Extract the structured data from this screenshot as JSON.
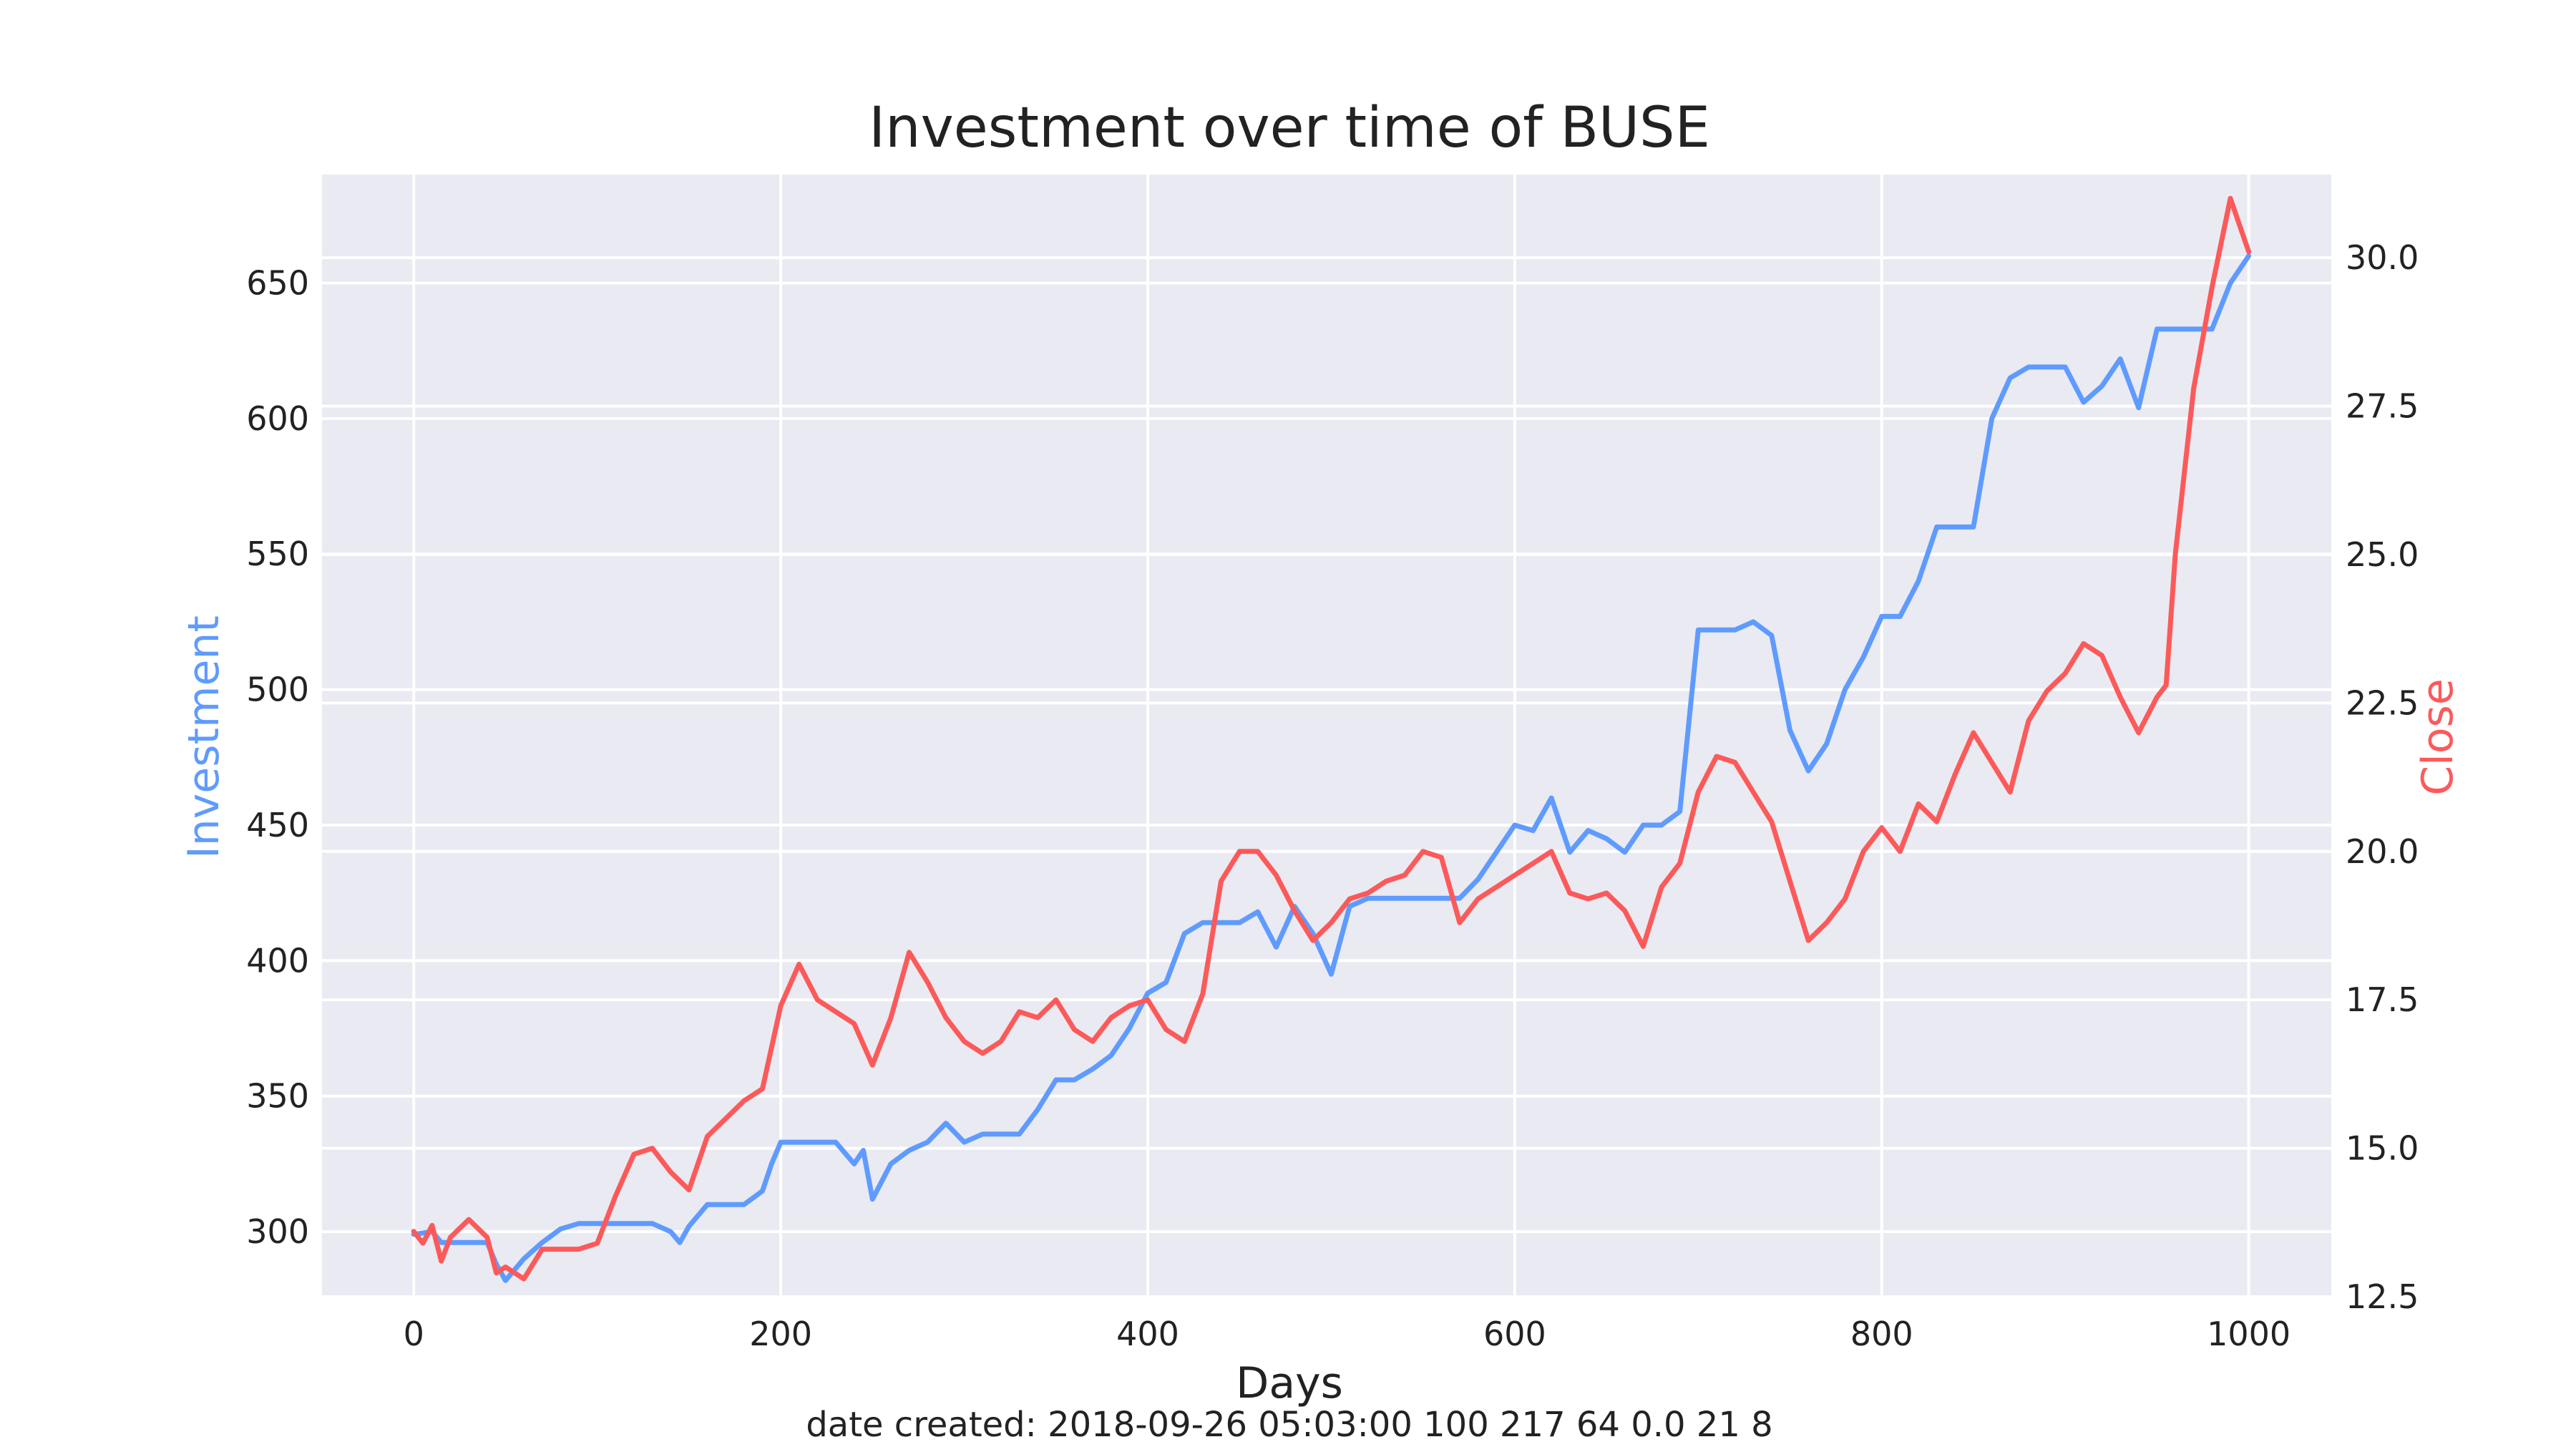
{
  "chart_data": {
    "type": "line",
    "title": "Investment over time of BUSE",
    "xlabel": "Days",
    "ylabel_left": "Investment",
    "ylabel_right": "Close",
    "xlim": [
      -50,
      1045
    ],
    "ylim_left": [
      276,
      690
    ],
    "ylim_right": [
      12.5,
      31.4
    ],
    "x_ticks": [
      0,
      200,
      400,
      600,
      800,
      1000
    ],
    "x_tick_labels": [
      "0",
      "200",
      "400",
      "600",
      "800",
      "1000"
    ],
    "y_left_ticks": [
      300,
      350,
      400,
      450,
      500,
      550,
      600,
      650
    ],
    "y_left_tick_labels": [
      "300",
      "350",
      "400",
      "450",
      "500",
      "550",
      "600",
      "650"
    ],
    "y_right_ticks": [
      12.5,
      15.0,
      17.5,
      20.0,
      22.5,
      25.0,
      27.5,
      30.0
    ],
    "y_right_tick_labels": [
      "12.5",
      "15.0",
      "17.5",
      "20.0",
      "22.5",
      "25.0",
      "27.5",
      "30.0"
    ],
    "grid": true,
    "background_color": "#eaeaf2",
    "series": [
      {
        "axis": "left",
        "color": "#5f9bff",
        "x": [
          0,
          10,
          15,
          20,
          40,
          45,
          50,
          60,
          70,
          80,
          90,
          100,
          110,
          120,
          130,
          140,
          145,
          150,
          160,
          170,
          180,
          190,
          195,
          200,
          210,
          220,
          230,
          240,
          245,
          250,
          260,
          270,
          280,
          290,
          300,
          310,
          320,
          330,
          340,
          350,
          360,
          370,
          380,
          390,
          400,
          410,
          420,
          430,
          440,
          450,
          460,
          470,
          480,
          490,
          500,
          510,
          520,
          530,
          540,
          550,
          560,
          570,
          580,
          590,
          600,
          610,
          620,
          630,
          640,
          650,
          660,
          670,
          680,
          690,
          700,
          710,
          720,
          730,
          740,
          750,
          760,
          770,
          780,
          790,
          800,
          810,
          820,
          830,
          840,
          850,
          860,
          870,
          880,
          890,
          900,
          910,
          920,
          930,
          940,
          950,
          960,
          970,
          980,
          990,
          1000
        ],
        "y": [
          299,
          300,
          296,
          296,
          296,
          288,
          282,
          290,
          296,
          301,
          303,
          303,
          303,
          303,
          303,
          300,
          296,
          302,
          310,
          310,
          310,
          315,
          325,
          333,
          333,
          333,
          333,
          325,
          330,
          312,
          325,
          330,
          333,
          340,
          333,
          336,
          336,
          336,
          345,
          356,
          356,
          360,
          365,
          375,
          388,
          392,
          410,
          414,
          414,
          414,
          418,
          405,
          420,
          410,
          395,
          420,
          423,
          423,
          423,
          423,
          423,
          423,
          430,
          440,
          450,
          448,
          460,
          440,
          448,
          445,
          440,
          450,
          450,
          455,
          522,
          522,
          522,
          525,
          520,
          485,
          470,
          480,
          500,
          512,
          527,
          527,
          540,
          560,
          560,
          560,
          600,
          615,
          619,
          619,
          619,
          606,
          612,
          622,
          604,
          633,
          633,
          633,
          633,
          650,
          660
        ]
      },
      {
        "axis": "right",
        "color": "#fc5a5a",
        "x": [
          0,
          5,
          10,
          15,
          20,
          30,
          40,
          45,
          50,
          60,
          70,
          80,
          90,
          100,
          110,
          120,
          130,
          140,
          150,
          160,
          170,
          180,
          190,
          200,
          210,
          220,
          230,
          240,
          250,
          260,
          270,
          280,
          290,
          300,
          310,
          320,
          330,
          340,
          350,
          360,
          370,
          380,
          390,
          400,
          410,
          420,
          430,
          440,
          450,
          460,
          470,
          480,
          490,
          500,
          510,
          520,
          530,
          540,
          550,
          560,
          570,
          580,
          590,
          600,
          610,
          620,
          630,
          640,
          650,
          660,
          670,
          680,
          690,
          700,
          710,
          720,
          730,
          740,
          750,
          760,
          770,
          780,
          790,
          800,
          810,
          820,
          830,
          840,
          850,
          860,
          870,
          880,
          890,
          900,
          910,
          920,
          930,
          940,
          950,
          955,
          960,
          970,
          980,
          990,
          1000
        ],
        "y": [
          13.6,
          13.4,
          13.7,
          13.1,
          13.5,
          13.8,
          13.5,
          12.9,
          13.0,
          12.8,
          13.3,
          13.3,
          13.3,
          13.4,
          14.2,
          14.9,
          15.0,
          14.6,
          14.3,
          15.2,
          15.5,
          15.8,
          16.0,
          17.4,
          18.1,
          17.5,
          17.3,
          17.1,
          16.4,
          17.2,
          18.3,
          17.8,
          17.2,
          16.8,
          16.6,
          16.8,
          17.3,
          17.2,
          17.5,
          17.0,
          16.8,
          17.2,
          17.4,
          17.5,
          17.0,
          16.8,
          17.6,
          19.5,
          20.0,
          20.0,
          19.6,
          19.0,
          18.5,
          18.8,
          19.2,
          19.3,
          19.5,
          19.6,
          20.0,
          19.9,
          18.8,
          19.2,
          19.4,
          19.6,
          19.8,
          20.0,
          19.3,
          19.2,
          19.3,
          19.0,
          18.4,
          19.4,
          19.8,
          21.0,
          21.6,
          21.5,
          21.0,
          20.5,
          19.5,
          18.5,
          18.8,
          19.2,
          20.0,
          20.4,
          20.0,
          20.8,
          20.5,
          21.3,
          22.0,
          21.5,
          21.0,
          22.2,
          22.7,
          23.0,
          23.5,
          23.3,
          22.6,
          22.0,
          22.6,
          22.8,
          25.0,
          27.8,
          29.5,
          31.0,
          30.1
        ]
      }
    ]
  },
  "footer": {
    "caption": "date created: 2018-09-26 05:03:00 100 217 64 0.0 21 8"
  }
}
